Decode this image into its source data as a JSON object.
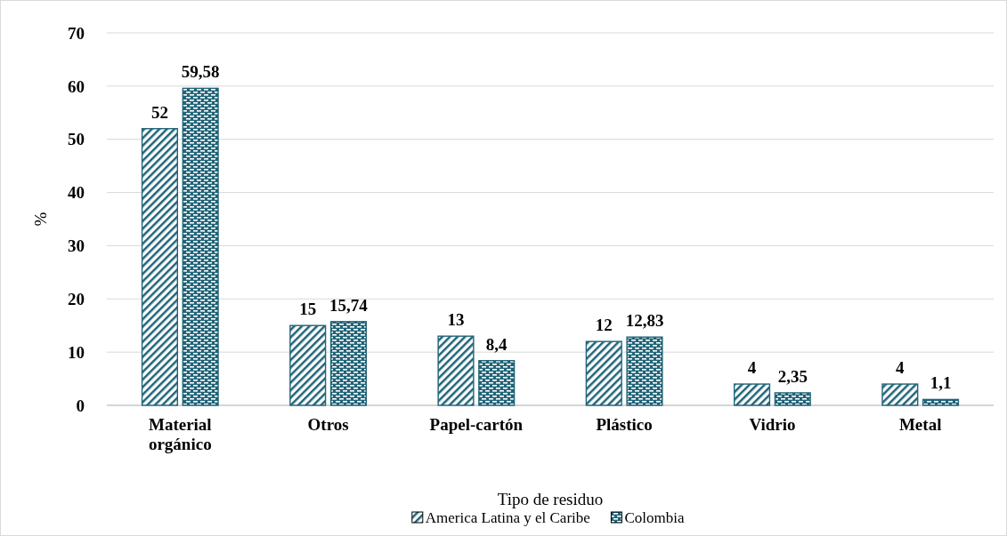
{
  "chart_data": {
    "type": "bar",
    "xlabel": "Tipo de residuo",
    "ylabel": "%",
    "categories": [
      "Material orgánico",
      "Otros",
      "Papel-cartón",
      "Plástico",
      "Vidrio",
      "Metal"
    ],
    "series": [
      {
        "name": "America Latina y el Caribe",
        "color": "#1f6478",
        "values": [
          52,
          15,
          13,
          12,
          4,
          4
        ],
        "value_labels": [
          "52",
          "15",
          "13",
          "12",
          "4",
          "4"
        ]
      },
      {
        "name": "Colombia",
        "color": "#1f6478",
        "values": [
          59.58,
          15.74,
          8.4,
          12.83,
          2.35,
          1.1
        ],
        "value_labels": [
          "59,58",
          "15,74",
          "8,4",
          "12,83",
          "2,35",
          "1,1"
        ]
      }
    ],
    "ylim": [
      0,
      70
    ],
    "yticks": [
      0,
      10,
      20,
      30,
      40,
      50,
      60,
      70
    ],
    "grid": "y",
    "legend": "bottom"
  }
}
